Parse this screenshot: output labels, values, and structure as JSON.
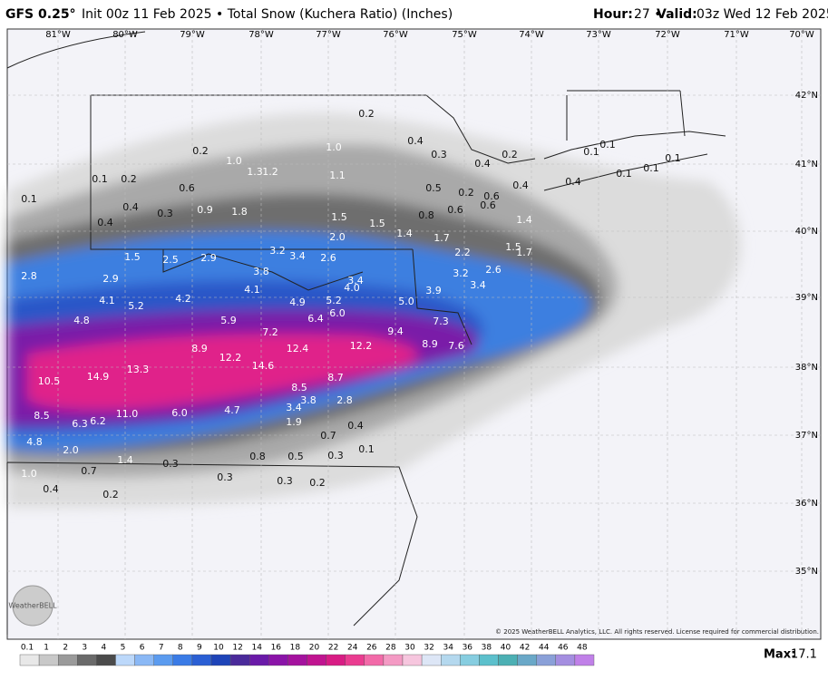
{
  "header": {
    "model": "GFS 0.25°",
    "detail": "Init 00z 11 Feb 2025 • Total Snow (Kuchera Ratio) (Inches)",
    "hour_label": "Hour:",
    "hour": "27 •",
    "valid_label": "Valid:",
    "valid": "03z Wed 12 Feb 2025"
  },
  "longitudes": [
    "81°W",
    "80°W",
    "79°W",
    "78°W",
    "77°W",
    "76°W",
    "75°W",
    "74°W",
    "73°W",
    "72°W",
    "71°W",
    "70°W"
  ],
  "latitudes": [
    "42°N",
    "41°N",
    "40°N",
    "39°N",
    "38°N",
    "37°N",
    "36°N",
    "35°N"
  ],
  "snow_labels": [
    "0.2",
    "1.0",
    "0.4",
    "0.3",
    "0.2",
    "1.0",
    "1.3",
    "1.2",
    "1.1",
    "0.4",
    "0.2",
    "0.1",
    "0.2",
    "0.6",
    "0.5",
    "0.2",
    "0.6",
    "0.1",
    "0.4",
    "0.3",
    "0.9",
    "1.8",
    "1.5",
    "1.5",
    "0.8",
    "0.6",
    "0.6",
    "0.4",
    "1.4",
    "0.4",
    "2.0",
    "1.4",
    "1.7",
    "0.1",
    "0.1",
    "0.1",
    "0.1",
    "0.1",
    "0.4",
    "1.5",
    "1.7",
    "1.5",
    "2.5",
    "2.9",
    "3.2",
    "3.4",
    "2.6",
    "2.2",
    "2.8",
    "2.9",
    "3.8",
    "3.4",
    "4.0",
    "3.2",
    "2.6",
    "3.4",
    "4.1",
    "5.2",
    "4.1",
    "4.2",
    "4.9",
    "5.2",
    "6.0",
    "5.0",
    "3.9",
    "4.8",
    "6.4",
    "5.9",
    "7.2",
    "7.3",
    "9.4",
    "8.9",
    "12.4",
    "12.2",
    "8.9",
    "7.6",
    "12.2",
    "14.6",
    "14.9",
    "13.3",
    "10.5",
    "8.7",
    "8.5",
    "3.8",
    "3.4",
    "2.8",
    "8.5",
    "6.3",
    "6.2",
    "11.0",
    "6.0",
    "4.7",
    "1.9",
    "0.4",
    "0.7",
    "4.8",
    "2.0",
    "0.1",
    "1.4",
    "0.3",
    "0.8",
    "0.5",
    "0.3",
    "1.0",
    "0.7",
    "0.3",
    "0.3",
    "0.2",
    "0.4",
    "0.2"
  ],
  "copyright": "© 2025 WeatherBELL Analytics, LLC. All rights reserved. License required for commercial distribution.",
  "logo": "WeatherBELL",
  "legend": {
    "ticks": [
      "0.1",
      "1",
      "2",
      "3",
      "4",
      "5",
      "6",
      "7",
      "8",
      "9",
      "10",
      "12",
      "14",
      "16",
      "18",
      "20",
      "22",
      "24",
      "26",
      "28",
      "30",
      "32",
      "34",
      "36",
      "38",
      "40",
      "42",
      "44",
      "46",
      "48"
    ]
  },
  "max": {
    "label": "Max:",
    "value": "17.1"
  }
}
